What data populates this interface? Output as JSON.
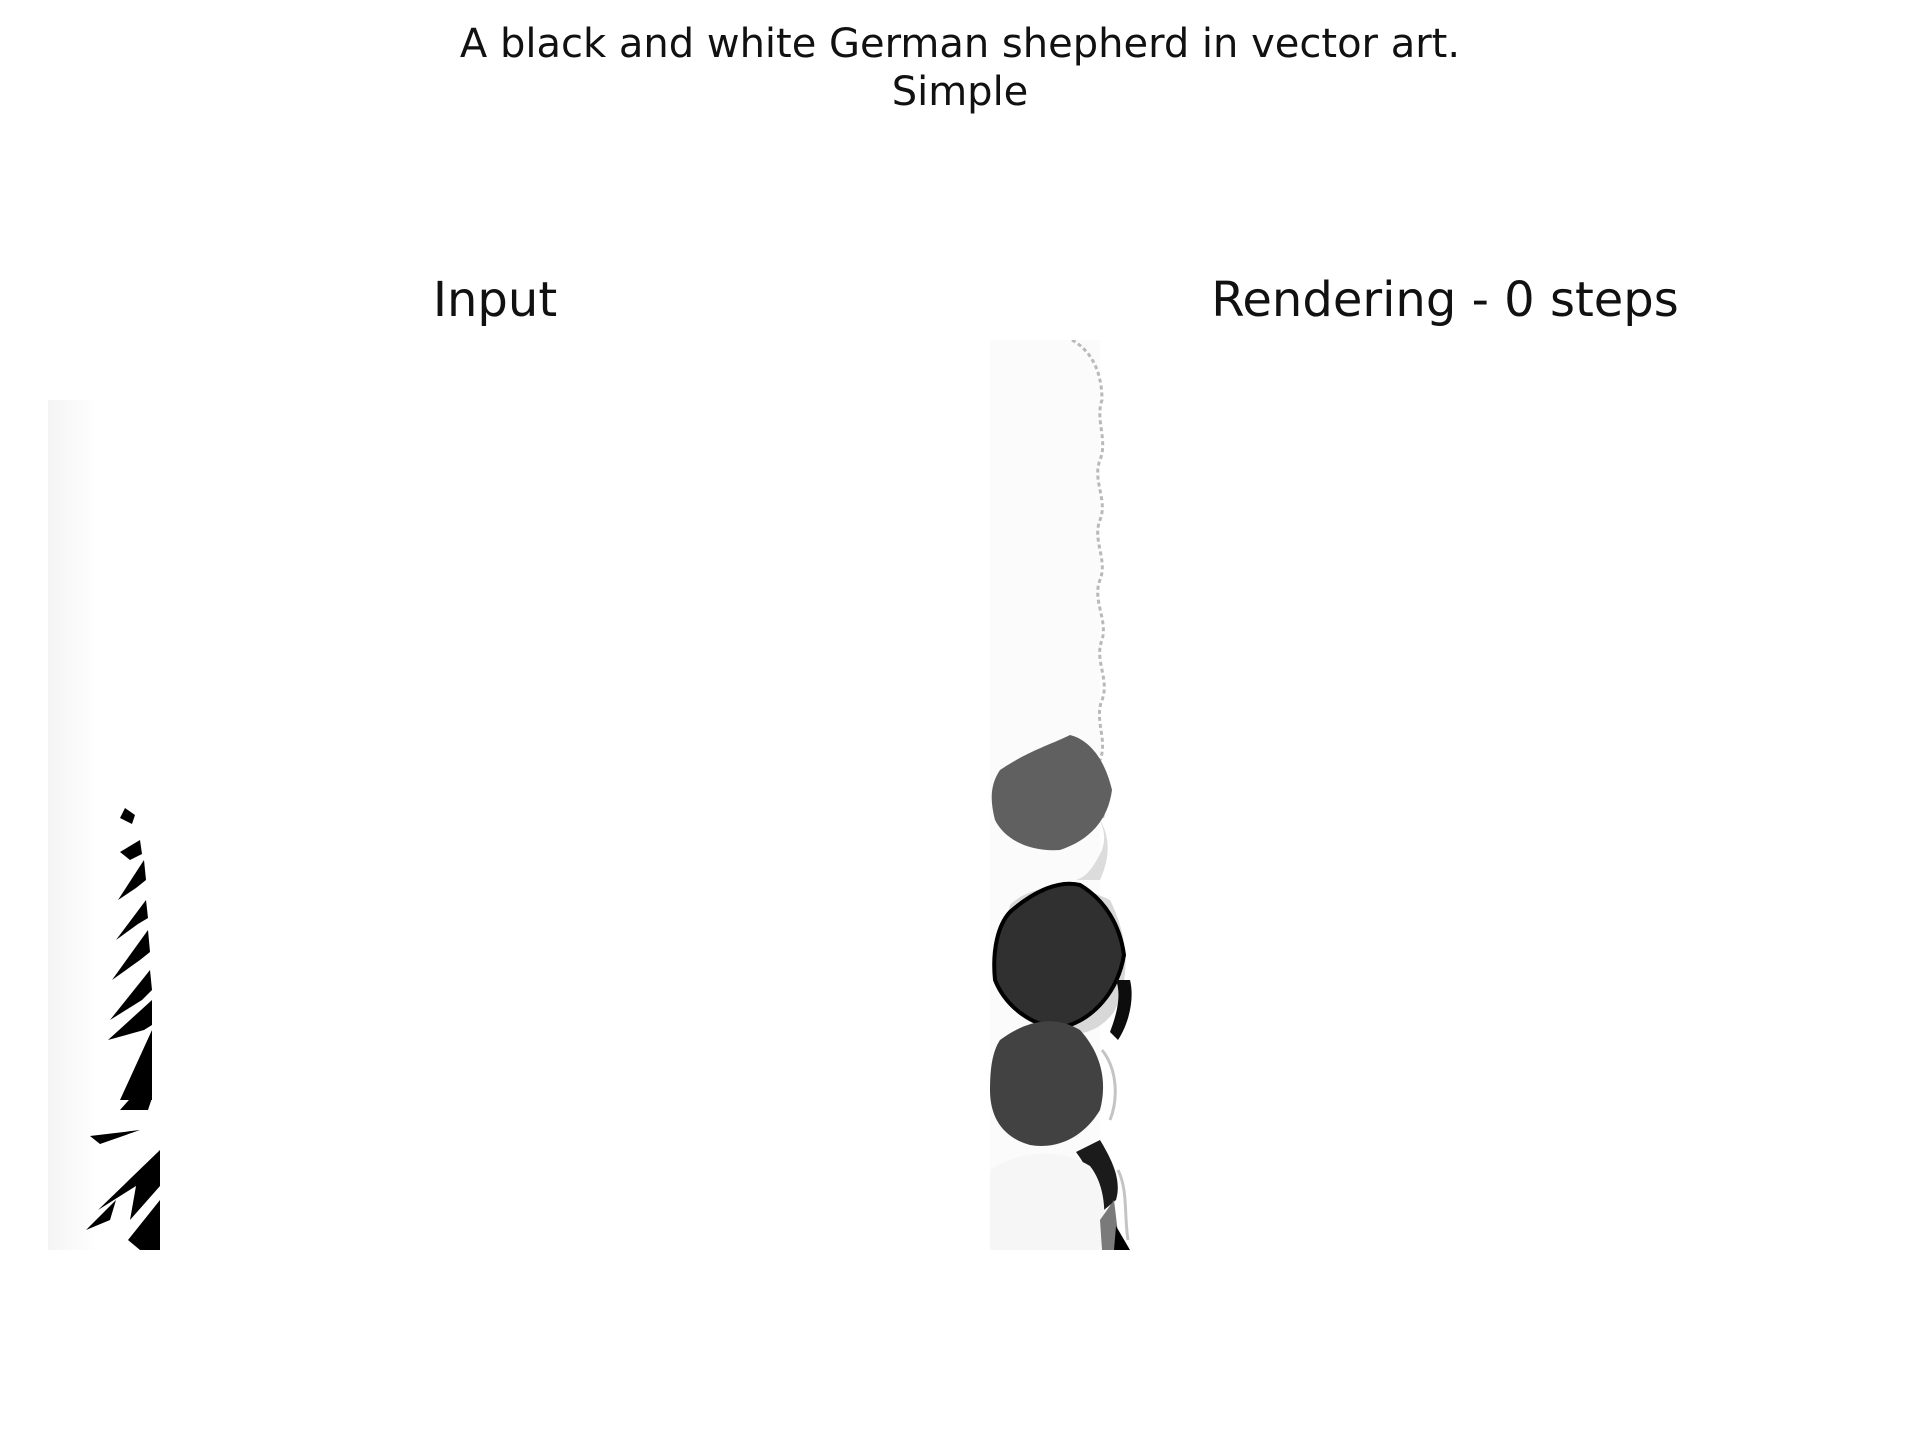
{
  "figure": {
    "title_lines": [
      "A black and white German shepherd in vector art.",
      "Simple"
    ]
  },
  "panels": {
    "input": {
      "title": "Input"
    },
    "rendering": {
      "title": "Rendering - 0 steps",
      "steps": 0
    }
  },
  "colors": {
    "background": "#ffffff",
    "text": "#111111",
    "ink_black": "#000000",
    "dark_gray": "#2f302f",
    "mid_gray": "#414241",
    "light_gray": "#5f605f",
    "pale": "#f6f6f6"
  }
}
